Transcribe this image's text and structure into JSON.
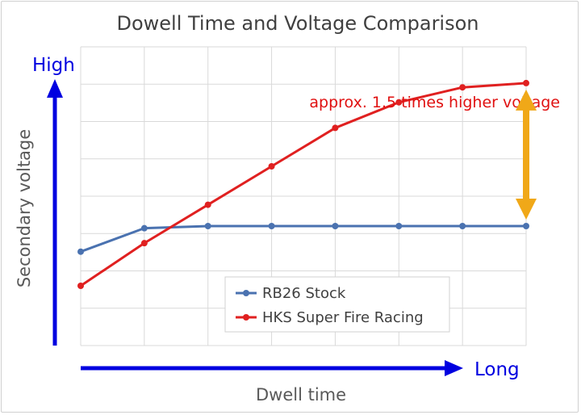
{
  "chart_data": {
    "type": "line",
    "title": "Dowell Time and Voltage Comparison",
    "xlabel": "Dwell time",
    "ylabel": "Secondary voltage",
    "x_axis_end_label": "Long",
    "y_axis_end_label": "High",
    "x": [
      0,
      1,
      2,
      3,
      4,
      5,
      6,
      7
    ],
    "ylim": [
      0,
      7
    ],
    "grid": true,
    "legend_position": "bottom-center",
    "series": [
      {
        "name": "RB26 Stock",
        "color": "#4a72b0",
        "values": [
          2.2,
          2.75,
          2.8,
          2.8,
          2.8,
          2.8,
          2.8,
          2.8
        ]
      },
      {
        "name": "HKS Super Fire Racing",
        "color": "#e02020",
        "values": [
          1.4,
          2.4,
          3.3,
          4.2,
          5.1,
          5.7,
          6.05,
          6.15
        ]
      }
    ],
    "annotation": {
      "text": "approx. 1.5 times higher voltage",
      "color": "#f0a818"
    }
  }
}
